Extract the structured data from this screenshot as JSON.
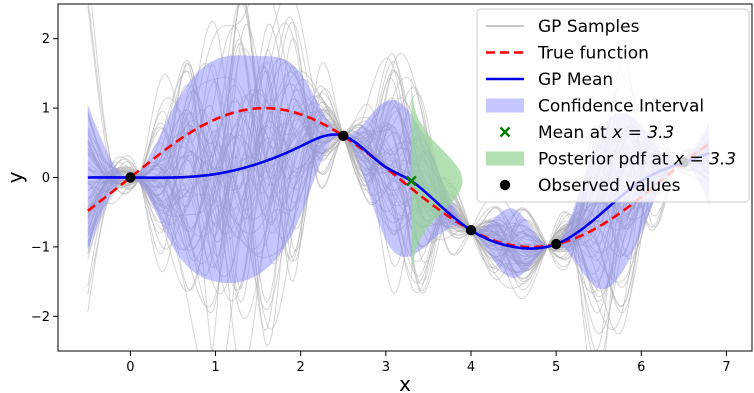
{
  "chart_data": {
    "type": "line",
    "title": "",
    "xlabel": "x",
    "ylabel": "y",
    "xlim": [
      -0.85,
      7.3
    ],
    "ylim": [
      -2.5,
      2.5
    ],
    "grid": false,
    "legend_position": "top-right",
    "x_ticks": [
      0,
      1,
      2,
      3,
      4,
      5,
      6,
      7
    ],
    "y_ticks": [
      -2,
      -1,
      0,
      1,
      2
    ],
    "x_tick_labels": [
      "0",
      "1",
      "2",
      "3",
      "4",
      "5",
      "6",
      "7"
    ],
    "y_tick_labels": [
      "−2",
      "−1",
      "0",
      "1",
      "2"
    ],
    "observed": {
      "name": "Observed values",
      "x": [
        0,
        2.5,
        4,
        5,
        6.5
      ],
      "y": [
        0,
        0.6,
        -0.76,
        -0.96,
        0.22
      ],
      "color": "#000000"
    },
    "true_function": {
      "name": "True function",
      "x": [
        -0.5,
        0,
        0.5,
        1.0,
        1.6,
        2.0,
        2.5,
        3.0,
        3.5,
        4.0,
        4.5,
        5.0,
        5.5,
        6.0,
        6.5,
        6.8
      ],
      "y": [
        -0.48,
        0,
        0.48,
        0.84,
        1.0,
        0.91,
        0.6,
        0.14,
        -0.35,
        -0.76,
        -0.98,
        -0.96,
        -0.71,
        -0.28,
        0.22,
        0.49
      ],
      "color": "#ff0000"
    },
    "gp_mean": {
      "name": "GP Mean",
      "x": [
        -0.5,
        0,
        0.5,
        1.0,
        1.5,
        2.0,
        2.5,
        3.0,
        3.3,
        3.5,
        4.0,
        4.5,
        5.0,
        5.5,
        6.0,
        6.5,
        6.8
      ],
      "y": [
        0,
        0,
        0.0,
        0.05,
        0.2,
        0.45,
        0.6,
        0.15,
        -0.05,
        -0.25,
        -0.76,
        -1.0,
        -0.96,
        -0.55,
        -0.05,
        0.22,
        0.35
      ],
      "color": "#0000ee"
    },
    "confidence_interval": {
      "name": "Confidence Interval",
      "x": [
        -0.5,
        0,
        0.5,
        1.0,
        1.5,
        2.0,
        2.5,
        3.0,
        3.5,
        4.0,
        4.5,
        5.0,
        5.5,
        6.0,
        6.5,
        6.8
      ],
      "upper": [
        1.05,
        0,
        1.0,
        1.7,
        1.75,
        1.5,
        0.6,
        1.1,
        0.45,
        -0.76,
        -0.45,
        -0.96,
        0.6,
        0.75,
        0.22,
        0.8
      ],
      "lower": [
        -1.05,
        0,
        -1.0,
        -1.5,
        -1.4,
        -0.55,
        0.6,
        -0.9,
        -0.95,
        -0.76,
        -1.45,
        -0.96,
        -1.6,
        -0.8,
        0.22,
        -0.4
      ],
      "color": "#8080ff"
    },
    "posterior_pdf": {
      "name": "Posterior pdf at x = 3.3",
      "x_position": 3.3,
      "mean": -0.05,
      "peak_width": 0.6,
      "sd": 0.45,
      "color": "#99d699"
    },
    "mean_marker": {
      "name": "Mean at x = 3.3",
      "x": 3.3,
      "y": -0.05,
      "color": "#008000"
    },
    "samples": {
      "name": "GP Samples",
      "count": 60,
      "color": "#b3b3b3"
    },
    "legend": [
      {
        "key": "samples",
        "label_main": "GP Samples",
        "label_math": ""
      },
      {
        "key": "true",
        "label_main": "True function",
        "label_math": ""
      },
      {
        "key": "mean",
        "label_main": "GP Mean",
        "label_math": ""
      },
      {
        "key": "ci",
        "label_main": "Confidence Interval",
        "label_math": ""
      },
      {
        "key": "mean_at",
        "label_main": "Mean at ",
        "label_math": "x = 3.3"
      },
      {
        "key": "pdf",
        "label_main": "Posterior pdf at ",
        "label_math": "x = 3.3"
      },
      {
        "key": "obs",
        "label_main": "Observed values",
        "label_math": ""
      }
    ]
  }
}
